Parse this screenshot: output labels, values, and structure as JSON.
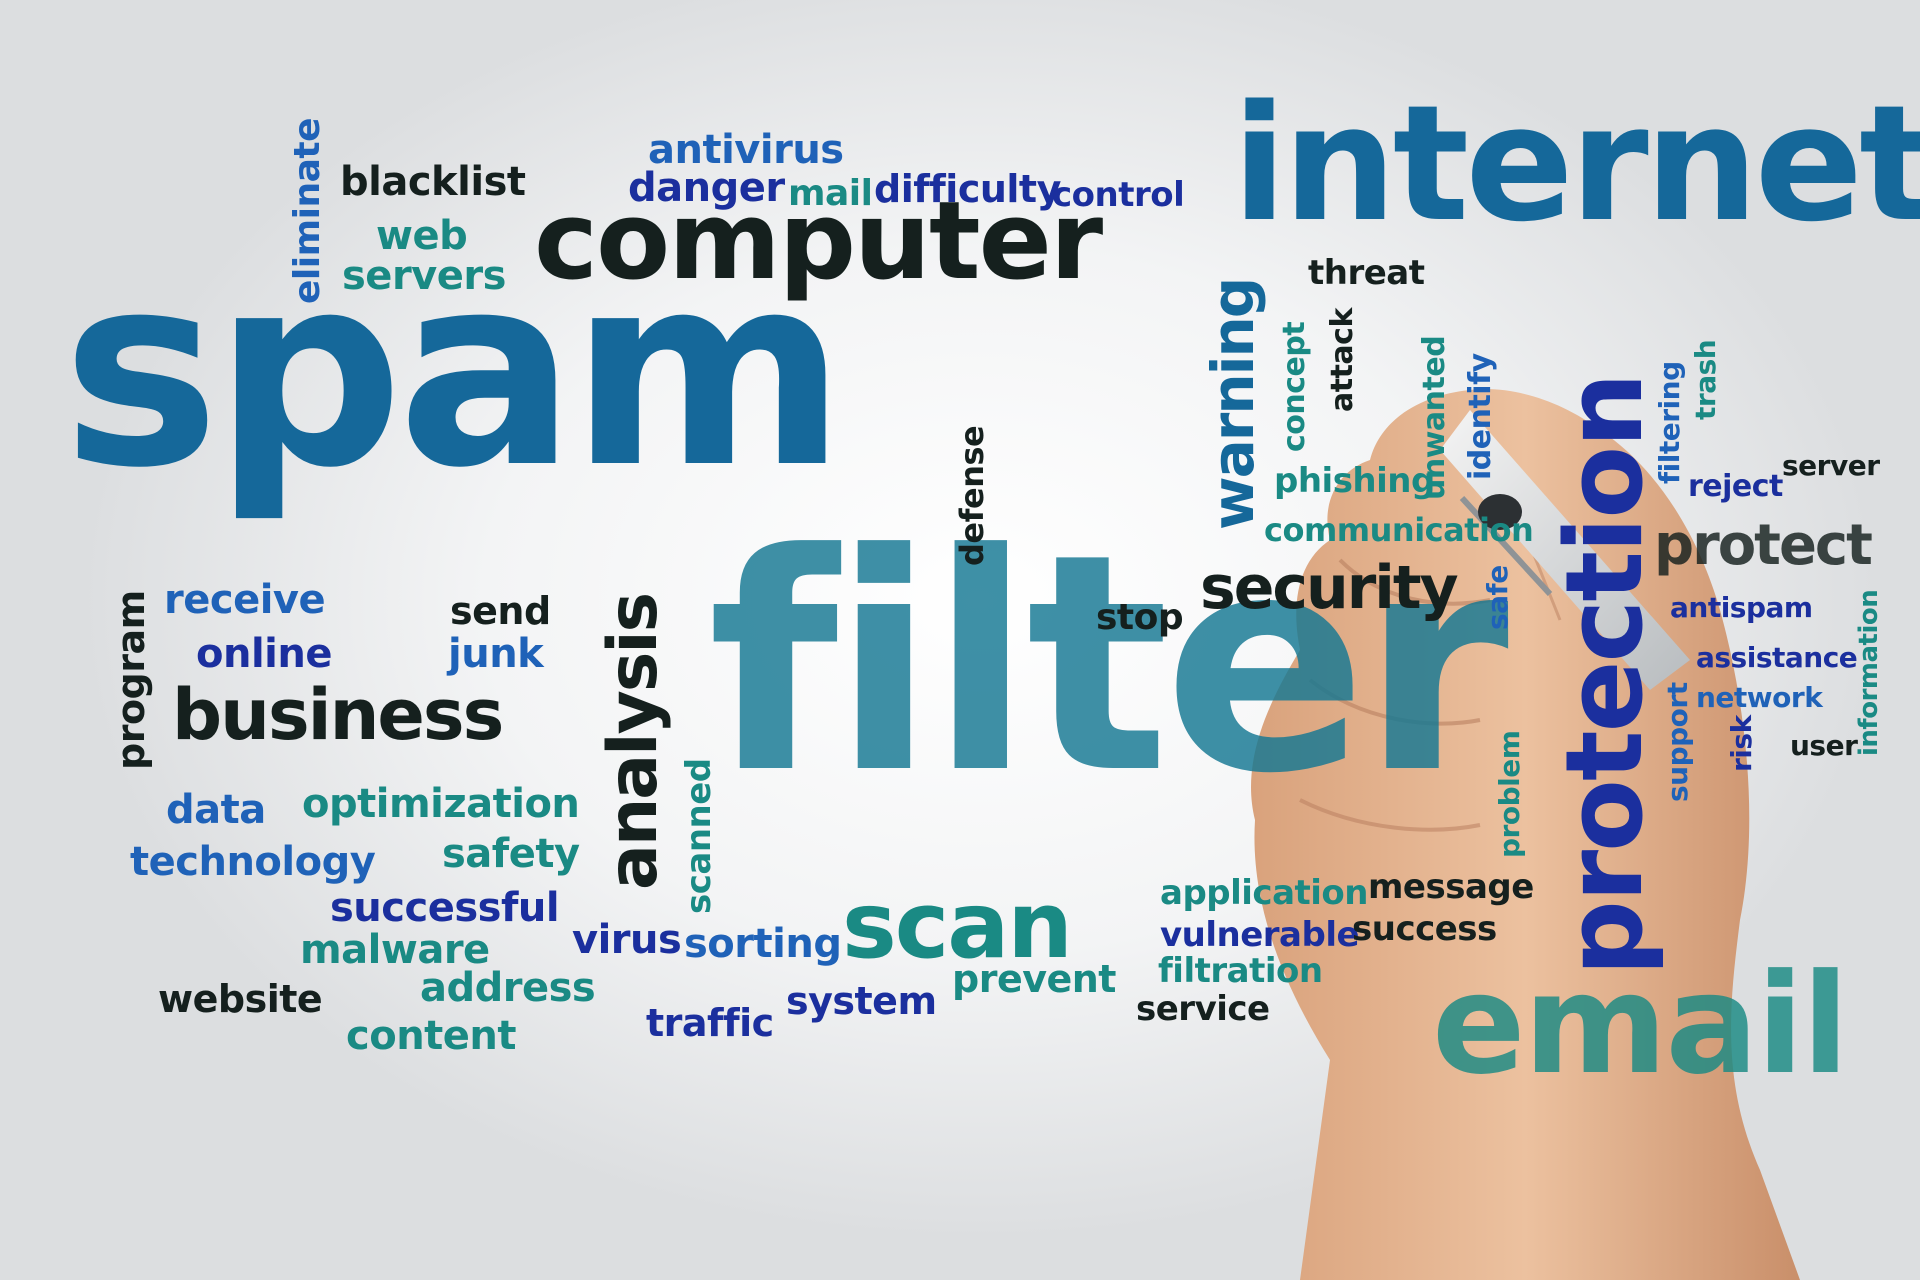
{
  "colors": {
    "blue": "#15689a",
    "navy": "#1b2f9e",
    "teal": "#1a8a84",
    "dark": "#15201e",
    "mid_blue": "#1f62b8",
    "skin": "#e6b590"
  },
  "words": {
    "spam": "spam",
    "filter": "filter",
    "internet": "internet",
    "computer": "computer",
    "email": "email",
    "protection": "protection",
    "scan": "scan",
    "business": "business",
    "security": "security",
    "protect": "protect",
    "analysis": "analysis",
    "warning": "warning",
    "antivirus": "antivirus",
    "danger": "danger",
    "mail": "mail",
    "difficulty": "difficulty",
    "control": "control",
    "blacklist": "blacklist",
    "eliminate": "eliminate",
    "web": "web",
    "servers": "servers",
    "threat": "threat",
    "concept": "concept",
    "attack": "attack",
    "unwanted": "unwanted",
    "identify": "identify",
    "filtering": "filtering",
    "trash": "trash",
    "phishing": "phishing",
    "server": "server",
    "reject": "reject",
    "communication": "communication",
    "defense": "defense",
    "safe": "safe",
    "antispam": "antispam",
    "information": "information",
    "assistance": "assistance",
    "network": "network",
    "user": "user",
    "support": "support",
    "risk": "risk",
    "receive": "receive",
    "send": "send",
    "stop": "stop",
    "program": "program",
    "online": "online",
    "junk": "junk",
    "data": "data",
    "optimization": "optimization",
    "technology": "technology",
    "safety": "safety",
    "successful": "successful",
    "malware": "malware",
    "virus": "virus",
    "sorting": "sorting",
    "scanned": "scanned",
    "website": "website",
    "address": "address",
    "content": "content",
    "traffic": "traffic",
    "system": "system",
    "prevent": "prevent",
    "application": "application",
    "message": "message",
    "vulnerable": "vulnerable",
    "success": "success",
    "filtration": "filtration",
    "service": "service",
    "problem": "problem"
  }
}
